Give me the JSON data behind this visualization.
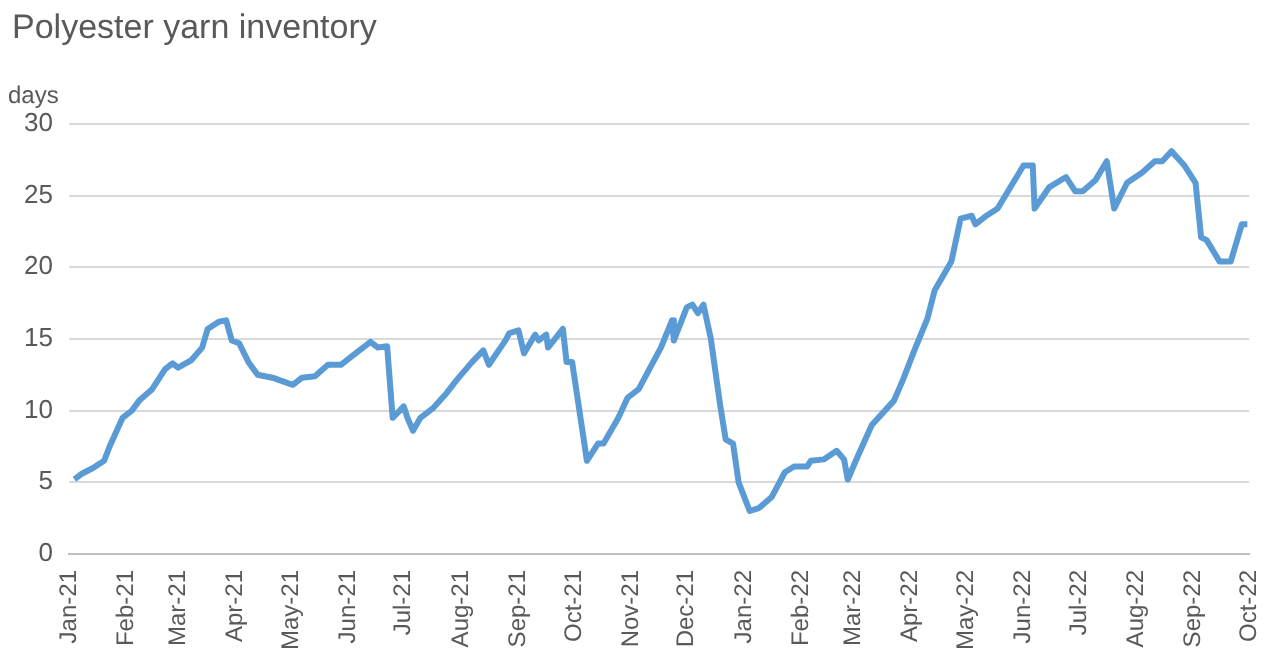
{
  "chart_data": {
    "type": "line",
    "title": "Polyester yarn inventory",
    "ylabel": "days",
    "x": [
      "2021-01-04",
      "2021-01-08",
      "2021-01-14",
      "2021-01-20",
      "2021-01-23",
      "2021-01-30",
      "2021-02-04",
      "2021-02-08",
      "2021-02-15",
      "2021-02-22",
      "2021-02-26",
      "2021-03-01",
      "2021-03-08",
      "2021-03-14",
      "2021-03-17",
      "2021-03-23",
      "2021-03-27",
      "2021-03-30",
      "2021-04-03",
      "2021-04-08",
      "2021-04-13",
      "2021-04-21",
      "2021-05-02",
      "2021-05-07",
      "2021-05-14",
      "2021-05-21",
      "2021-05-28",
      "2021-06-03",
      "2021-06-13",
      "2021-06-17",
      "2021-06-22",
      "2021-06-25",
      "2021-07-01",
      "2021-07-03",
      "2021-07-06",
      "2021-07-10",
      "2021-07-17",
      "2021-07-24",
      "2021-07-30",
      "2021-08-07",
      "2021-08-13",
      "2021-08-16",
      "2021-08-25",
      "2021-08-27",
      "2021-09-01",
      "2021-09-04",
      "2021-09-10",
      "2021-09-12",
      "2021-09-16",
      "2021-09-17",
      "2021-09-25",
      "2021-09-27",
      "2021-09-30",
      "2021-10-08",
      "2021-10-14",
      "2021-10-17",
      "2021-10-25",
      "2021-10-30",
      "2021-11-05",
      "2021-11-12",
      "2021-11-17",
      "2021-11-23",
      "2021-11-24",
      "2021-12-01",
      "2021-12-04",
      "2021-12-07",
      "2021-12-10",
      "2021-12-14",
      "2021-12-19",
      "2021-12-22",
      "2021-12-26",
      "2021-12-29",
      "2022-01-04",
      "2022-01-09",
      "2022-01-16",
      "2022-01-23",
      "2022-01-28",
      "2022-02-04",
      "2022-02-06",
      "2022-02-13",
      "2022-02-20",
      "2022-02-24",
      "2022-02-26",
      "2022-03-03",
      "2022-03-11",
      "2022-03-23",
      "2022-03-28",
      "2022-04-03",
      "2022-04-10",
      "2022-04-14",
      "2022-04-23",
      "2022-04-28",
      "2022-05-04",
      "2022-05-06",
      "2022-05-12",
      "2022-05-18",
      "2022-05-25",
      "2022-06-01",
      "2022-06-06",
      "2022-06-07",
      "2022-06-15",
      "2022-06-24",
      "2022-06-29",
      "2022-07-03",
      "2022-07-10",
      "2022-07-16",
      "2022-07-20",
      "2022-07-27",
      "2022-08-04",
      "2022-08-11",
      "2022-08-15",
      "2022-08-20",
      "2022-08-27",
      "2022-09-02",
      "2022-09-05",
      "2022-09-08",
      "2022-09-15",
      "2022-09-21",
      "2022-09-27",
      "2022-09-30"
    ],
    "series": [
      {
        "color": "#5b9bd5",
        "values": [
          5.2,
          5.6,
          6.0,
          6.5,
          7.5,
          9.5,
          10.0,
          10.7,
          11.5,
          12.9,
          13.3,
          13.0,
          13.5,
          14.4,
          15.7,
          16.2,
          16.3,
          14.9,
          14.7,
          13.4,
          12.5,
          12.3,
          11.8,
          12.3,
          12.4,
          13.2,
          13.2,
          13.8,
          14.8,
          14.4,
          14.5,
          9.5,
          10.3,
          9.5,
          8.6,
          9.5,
          10.2,
          11.2,
          12.2,
          13.4,
          14.2,
          13.2,
          14.9,
          15.4,
          15.6,
          14.0,
          15.3,
          14.9,
          15.3,
          14.4,
          15.7,
          13.4,
          13.4,
          6.5,
          7.7,
          7.7,
          9.5,
          10.9,
          11.5,
          13.2,
          14.4,
          16.3,
          14.9,
          17.2,
          17.4,
          16.8,
          17.4,
          15.0,
          10.4,
          8.0,
          7.7,
          5.0,
          3.0,
          3.2,
          4.0,
          5.7,
          6.1,
          6.1,
          6.5,
          6.6,
          7.2,
          6.6,
          5.2,
          6.7,
          9.0,
          10.7,
          12.2,
          14.2,
          16.4,
          18.4,
          20.4,
          23.4,
          23.6,
          23.0,
          23.6,
          24.1,
          25.6,
          27.1,
          27.1,
          24.1,
          25.6,
          26.3,
          25.3,
          25.3,
          26.1,
          27.4,
          24.1,
          25.9,
          26.6,
          27.4,
          27.4,
          28.1,
          27.1,
          25.9,
          22.1,
          21.9,
          20.4,
          20.4,
          23.0,
          23.0
        ]
      }
    ],
    "xlim": [
      "2021-01-01",
      "2022-10-01"
    ],
    "xticks": [
      {
        "value": "2021-01-01",
        "label": "Jan-21"
      },
      {
        "value": "2021-02-01",
        "label": "Feb-21"
      },
      {
        "value": "2021-03-01",
        "label": "Mar-21"
      },
      {
        "value": "2021-04-01",
        "label": "Apr-21"
      },
      {
        "value": "2021-05-01",
        "label": "May-21"
      },
      {
        "value": "2021-06-01",
        "label": "Jun-21"
      },
      {
        "value": "2021-07-01",
        "label": "Jul-21"
      },
      {
        "value": "2021-08-01",
        "label": "Aug-21"
      },
      {
        "value": "2021-09-01",
        "label": "Sep-21"
      },
      {
        "value": "2021-10-01",
        "label": "Oct-21"
      },
      {
        "value": "2021-11-01",
        "label": "Nov-21"
      },
      {
        "value": "2021-12-01",
        "label": "Dec-21"
      },
      {
        "value": "2022-01-01",
        "label": "Jan-22"
      },
      {
        "value": "2022-02-01",
        "label": "Feb-22"
      },
      {
        "value": "2022-03-01",
        "label": "Mar-22"
      },
      {
        "value": "2022-04-01",
        "label": "Apr-22"
      },
      {
        "value": "2022-05-01",
        "label": "May-22"
      },
      {
        "value": "2022-06-01",
        "label": "Jun-22"
      },
      {
        "value": "2022-07-01",
        "label": "Jul-22"
      },
      {
        "value": "2022-08-01",
        "label": "Aug-22"
      },
      {
        "value": "2022-09-01",
        "label": "Sep-22"
      },
      {
        "value": "2022-10-01",
        "label": "Oct-22"
      }
    ],
    "ylim": [
      0,
      30
    ],
    "yticks": [
      0,
      5,
      10,
      15,
      20,
      25,
      30
    ],
    "grid": "y",
    "marker": "none",
    "line_style": "solid"
  }
}
